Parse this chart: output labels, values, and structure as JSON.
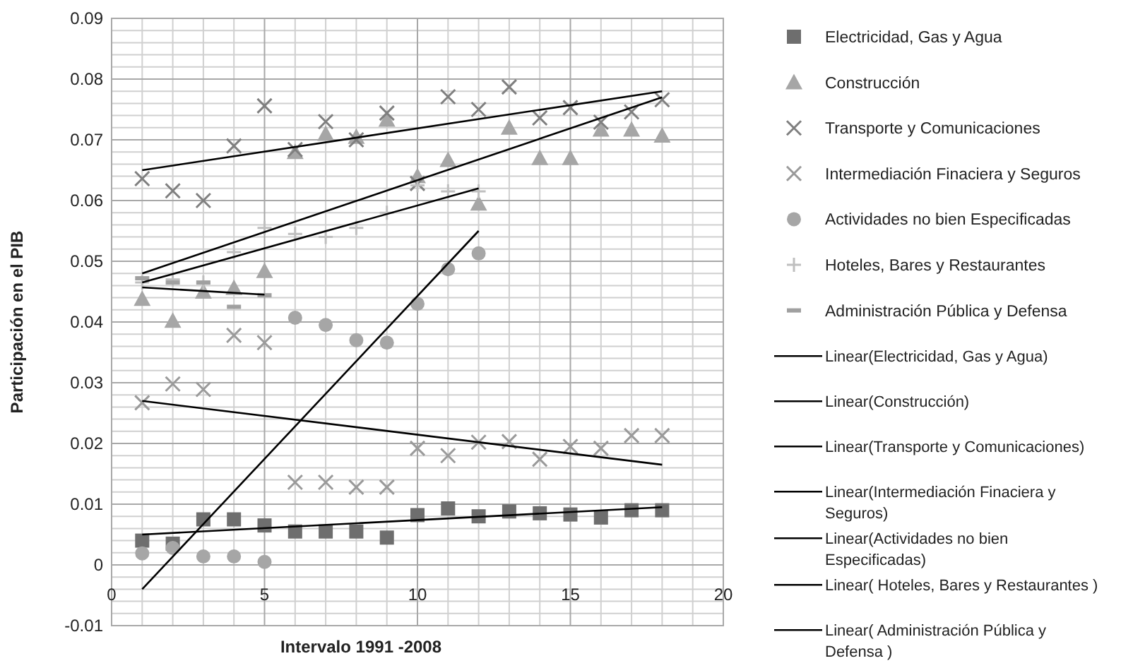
{
  "chart_data": {
    "type": "scatter",
    "xlabel": "Intervalo 1991 -2008",
    "ylabel": "Participación en el PIB",
    "xlim": [
      0,
      20
    ],
    "xticks": [
      0,
      5,
      10,
      15,
      20
    ],
    "ylim": [
      -0.01,
      0.09
    ],
    "yticks": [
      -0.01,
      0,
      0.01,
      0.02,
      0.03,
      0.04,
      0.05,
      0.06,
      0.07,
      0.08,
      0.09
    ],
    "grid": true,
    "legend": "right",
    "series": [
      {
        "name": "Electricidad, Gas y Agua",
        "color": "#6e6e6e",
        "marker": "square",
        "x": [
          1,
          2,
          3,
          4,
          5,
          6,
          7,
          8,
          9,
          10,
          11,
          12,
          13,
          14,
          15,
          16,
          17,
          18
        ],
        "values": [
          0.004,
          0.0035,
          0.0075,
          0.0075,
          0.0065,
          0.0055,
          0.0055,
          0.0055,
          0.0045,
          0.0082,
          0.0093,
          0.008,
          0.0088,
          0.0085,
          0.0083,
          0.0078,
          0.009,
          0.009
        ]
      },
      {
        "name": "Construcción",
        "color": "#a6a6a6",
        "marker": "triangle",
        "x": [
          1,
          2,
          3,
          4,
          5,
          6,
          7,
          8,
          9,
          10,
          11,
          12,
          13,
          14,
          15,
          16,
          17,
          18
        ],
        "values": [
          0.0438,
          0.0402,
          0.045,
          0.0456,
          0.0484,
          0.068,
          0.071,
          0.0705,
          0.0733,
          0.064,
          0.0667,
          0.0595,
          0.072,
          0.067,
          0.067,
          0.0717,
          0.0717,
          0.0707
        ]
      },
      {
        "name": "Transporte y Comunicaciones",
        "color": "#7f7f7f",
        "marker": "cross",
        "x": [
          1,
          2,
          3,
          4,
          5,
          6,
          7,
          8,
          9,
          10,
          11,
          12,
          13,
          14,
          15,
          16,
          17,
          18
        ],
        "values": [
          0.0636,
          0.0616,
          0.06,
          0.069,
          0.0756,
          0.0684,
          0.073,
          0.07,
          0.0744,
          0.0628,
          0.0771,
          0.075,
          0.0787,
          0.0736,
          0.0753,
          0.0729,
          0.0746,
          0.0766
        ]
      },
      {
        "name": "Intermediación Finaciera y Seguros",
        "color": "#9a9a9a",
        "marker": "cross",
        "x": [
          1,
          2,
          3,
          4,
          5,
          6,
          7,
          8,
          9,
          10,
          11,
          12,
          13,
          14,
          15,
          16,
          17,
          18
        ],
        "values": [
          0.0267,
          0.0298,
          0.0289,
          0.0378,
          0.0366,
          0.0136,
          0.0136,
          0.0128,
          0.0128,
          0.0192,
          0.018,
          0.0202,
          0.0203,
          0.0174,
          0.0195,
          0.0192,
          0.0213,
          0.0213
        ]
      },
      {
        "name": "Actividades no bien Especificadas",
        "color": "#a6a6a6",
        "marker": "circle",
        "x": [
          1,
          2,
          3,
          4,
          5,
          6,
          7,
          8,
          9,
          10,
          11,
          12
        ],
        "values": [
          0.0019,
          0.0028,
          0.0014,
          0.0014,
          0.0005,
          0.0407,
          0.0395,
          0.037,
          0.0366,
          0.043,
          0.0487,
          0.0513
        ]
      },
      {
        "name": "Hoteles, Bares y Restaurantes",
        "color": "#bfbfbf",
        "marker": "plus",
        "x": [
          1,
          2,
          3,
          4,
          5,
          6,
          7,
          8,
          9,
          10,
          11,
          12
        ],
        "values": [
          0.0465,
          0.047,
          0.0465,
          0.0515,
          0.0555,
          0.0545,
          0.054,
          0.0555,
          0.058,
          0.0625,
          0.0615,
          0.0615
        ]
      },
      {
        "name": "Administración Pública y Defensa",
        "color": "#a0a0a0",
        "x": [
          1,
          2,
          3,
          4,
          5
        ],
        "values": [
          0.0472,
          0.0465,
          0.0465,
          0.0425,
          0.0444
        ]
      },
      {
        "name": "Linear(Electricidad, Gas y Agua)",
        "type": "line",
        "color": "#000000",
        "x": [
          1,
          18
        ],
        "values": [
          0.005,
          0.0095
        ]
      },
      {
        "name": "Linear(Construcción)",
        "type": "line",
        "color": "#000000",
        "x": [
          1,
          18
        ],
        "values": [
          0.048,
          0.077
        ]
      },
      {
        "name": "Linear(Transporte y Comunicaciones)",
        "type": "line",
        "color": "#000000",
        "x": [
          1,
          18
        ],
        "values": [
          0.065,
          0.078
        ]
      },
      {
        "name": "Linear(Intermediación Finaciera y Seguros)",
        "type": "line",
        "color": "#000000",
        "x": [
          1,
          18
        ],
        "values": [
          0.027,
          0.0165
        ]
      },
      {
        "name": "Linear(Actividades no bien Especificadas)",
        "type": "line",
        "color": "#000000",
        "x": [
          1,
          12
        ],
        "values": [
          -0.004,
          0.055
        ]
      },
      {
        "name": "Linear( Hoteles, Bares y Restaurantes )",
        "type": "line",
        "color": "#000000",
        "x": [
          1,
          12
        ],
        "values": [
          0.0465,
          0.062
        ]
      },
      {
        "name": "Linear( Administración Pública y Defensa )",
        "type": "line",
        "color": "#000000",
        "x": [
          1,
          5
        ],
        "values": [
          0.0457,
          0.0445
        ]
      }
    ]
  }
}
